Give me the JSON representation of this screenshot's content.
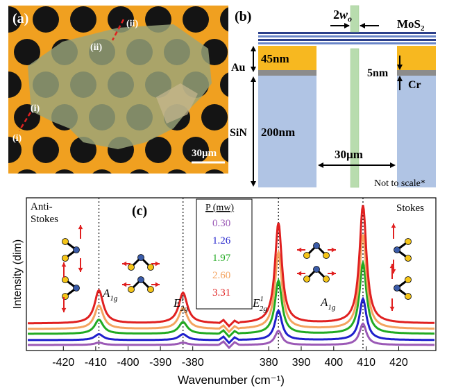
{
  "panel_a": {
    "label": "(a)",
    "marker_i": "(i)",
    "marker_ii": "(ii)",
    "scalebar": "30µm"
  },
  "panel_b": {
    "label": "(b)",
    "beam_width_prefix": "2",
    "beam_width_var": "w",
    "beam_width_sub": "o",
    "mos2": "MoS",
    "mos2_sub": "2",
    "au_label": "Au",
    "au_thickness": "45nm",
    "cr_thickness": "5nm",
    "cr_label": "Cr",
    "sin_label": "SiN",
    "sin_thickness": "200nm",
    "hole_width": "30µm",
    "note": "Not to scale*"
  },
  "panel_c": {
    "label": "(c)",
    "anti_stokes_line1": "Anti-",
    "anti_stokes_line2": "Stokes",
    "stokes": "Stokes",
    "legend_title": "P (mw)",
    "peak_labels": [
      {
        "main": "A",
        "sub": "1g",
        "sup": ""
      },
      {
        "main": "E",
        "sub": "2g",
        "sup": "1"
      },
      {
        "main": "E",
        "sub": "2g",
        "sup": "1"
      },
      {
        "main": "A",
        "sub": "1g",
        "sup": ""
      }
    ],
    "colors": {
      "purple": "#9b59b6",
      "blue": "#1f1fcc",
      "green": "#22aa22",
      "orange": "#f4a460",
      "red": "#e02020"
    }
  },
  "chart_data": {
    "type": "line",
    "xlabel": "Wavenumber (cm⁻¹)",
    "ylabel": "Intensity (dim)",
    "x_ticks_left": [
      -420,
      -410,
      -400,
      -390,
      -380
    ],
    "x_ticks_right": [
      380,
      390,
      400,
      410,
      420
    ],
    "x_tick_labels_left": [
      "-420",
      "-410",
      "-400",
      "-390",
      "-380"
    ],
    "x_tick_labels_right": [
      "380",
      "390",
      "400",
      "410",
      "420"
    ],
    "peak_positions": [
      -409,
      -383,
      383,
      409
    ],
    "series": [
      {
        "name": "0.30",
        "color": "#9b59b6",
        "peak_heights": [
          0.02,
          0.02,
          0.12,
          0.18
        ]
      },
      {
        "name": "1.26",
        "color": "#1f1fcc",
        "peak_heights": [
          0.05,
          0.05,
          0.25,
          0.35
        ]
      },
      {
        "name": "1.97",
        "color": "#22aa22",
        "peak_heights": [
          0.12,
          0.1,
          0.45,
          0.6
        ]
      },
      {
        "name": "2.60",
        "color": "#f4a460",
        "peak_heights": [
          0.2,
          0.18,
          0.65,
          0.8
        ]
      },
      {
        "name": "3.31",
        "color": "#e02020",
        "peak_heights": [
          0.28,
          0.26,
          0.85,
          1.0
        ]
      }
    ]
  }
}
